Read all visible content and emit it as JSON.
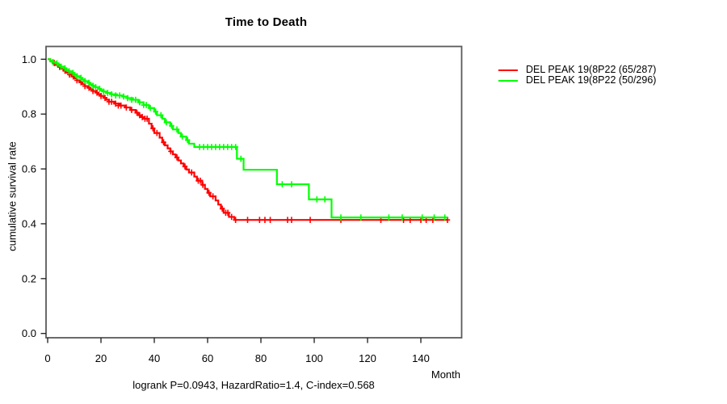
{
  "title": "Time to Death",
  "legend": [
    {
      "label": "DEL PEAK 19(8P22 (65/287)",
      "color": "#ff0000"
    },
    {
      "label": "DEL PEAK 19(8P22 (50/296)",
      "color": "#00ff00"
    }
  ],
  "chart_data": {
    "type": "line",
    "subtype": "kaplan-meier-step",
    "title": "Time to Death",
    "xlabel": "Month",
    "ylabel": "cumulative survival rate",
    "annotation": "logrank P=0.0943, HazardRatio=1.4, C-index=0.568",
    "xlim": [
      0,
      150
    ],
    "ylim": [
      0.0,
      1.0
    ],
    "x_ticks": [
      0,
      20,
      40,
      60,
      80,
      100,
      120,
      140
    ],
    "y_ticks": [
      0.0,
      0.2,
      0.4,
      0.6,
      0.8,
      1.0
    ],
    "grid": false,
    "legend_position": "outside-top-right",
    "axis_color": "#5a5a5a",
    "series": [
      {
        "name": "DEL PEAK 19(8P22 (65/287)",
        "color": "#ff0000",
        "end_month": 150,
        "steps": [
          [
            0,
            1.0
          ],
          [
            1,
            0.993
          ],
          [
            2,
            0.986
          ],
          [
            3,
            0.979
          ],
          [
            4,
            0.972
          ],
          [
            5,
            0.965
          ],
          [
            6,
            0.958
          ],
          [
            7,
            0.951
          ],
          [
            8,
            0.944
          ],
          [
            9,
            0.937
          ],
          [
            10,
            0.93
          ],
          [
            11,
            0.923
          ],
          [
            12,
            0.916
          ],
          [
            13,
            0.909
          ],
          [
            14,
            0.902
          ],
          [
            15,
            0.896
          ],
          [
            16,
            0.89
          ],
          [
            17,
            0.884
          ],
          [
            18,
            0.878
          ],
          [
            19,
            0.872
          ],
          [
            20,
            0.866
          ],
          [
            21,
            0.859
          ],
          [
            22,
            0.852
          ],
          [
            23,
            0.845
          ],
          [
            25,
            0.838
          ],
          [
            27,
            0.831
          ],
          [
            29,
            0.824
          ],
          [
            31,
            0.815
          ],
          [
            33,
            0.805
          ],
          [
            34,
            0.796
          ],
          [
            35,
            0.789
          ],
          [
            36,
            0.783
          ],
          [
            38,
            0.765
          ],
          [
            39,
            0.748
          ],
          [
            40,
            0.731
          ],
          [
            42,
            0.714
          ],
          [
            43,
            0.697
          ],
          [
            44,
            0.686
          ],
          [
            45,
            0.675
          ],
          [
            46,
            0.664
          ],
          [
            47,
            0.653
          ],
          [
            48,
            0.642
          ],
          [
            49,
            0.631
          ],
          [
            50,
            0.62
          ],
          [
            51,
            0.609
          ],
          [
            52,
            0.598
          ],
          [
            53,
            0.587
          ],
          [
            55,
            0.572
          ],
          [
            56,
            0.557
          ],
          [
            58,
            0.542
          ],
          [
            59,
            0.527
          ],
          [
            60,
            0.513
          ],
          [
            61,
            0.5
          ],
          [
            63,
            0.485
          ],
          [
            64,
            0.47
          ],
          [
            65,
            0.455
          ],
          [
            66,
            0.44
          ],
          [
            68,
            0.425
          ],
          [
            70,
            0.414
          ]
        ],
        "censors": [
          [
            2.5,
            0.986
          ],
          [
            4.5,
            0.972
          ],
          [
            6.5,
            0.958
          ],
          [
            8.2,
            0.944
          ],
          [
            9.6,
            0.937
          ],
          [
            11,
            0.923
          ],
          [
            12.5,
            0.916
          ],
          [
            14,
            0.902
          ],
          [
            15.5,
            0.896
          ],
          [
            17,
            0.884
          ],
          [
            18.5,
            0.878
          ],
          [
            20,
            0.866
          ],
          [
            21.5,
            0.859
          ],
          [
            23,
            0.845
          ],
          [
            24,
            0.845
          ],
          [
            25.5,
            0.838
          ],
          [
            26.5,
            0.831
          ],
          [
            27.5,
            0.831
          ],
          [
            29.5,
            0.824
          ],
          [
            31.5,
            0.815
          ],
          [
            33.5,
            0.805
          ],
          [
            34.5,
            0.796
          ],
          [
            35.5,
            0.789
          ],
          [
            36.5,
            0.783
          ],
          [
            37.3,
            0.783
          ],
          [
            39.5,
            0.748
          ],
          [
            41,
            0.731
          ],
          [
            43.5,
            0.697
          ],
          [
            46.2,
            0.664
          ],
          [
            48.5,
            0.642
          ],
          [
            51.5,
            0.609
          ],
          [
            54,
            0.587
          ],
          [
            56.5,
            0.557
          ],
          [
            57.3,
            0.557
          ],
          [
            58.2,
            0.542
          ],
          [
            60.5,
            0.513
          ],
          [
            62,
            0.5
          ],
          [
            65.5,
            0.455
          ],
          [
            66.8,
            0.44
          ],
          [
            67.6,
            0.44
          ],
          [
            69,
            0.425
          ],
          [
            70.5,
            0.414
          ],
          [
            75,
            0.414
          ],
          [
            79.5,
            0.414
          ],
          [
            81.5,
            0.414
          ],
          [
            83.5,
            0.414
          ],
          [
            90,
            0.414
          ],
          [
            91.5,
            0.414
          ],
          [
            98.5,
            0.414
          ],
          [
            110,
            0.414
          ],
          [
            125,
            0.414
          ],
          [
            133.5,
            0.414
          ],
          [
            136,
            0.414
          ],
          [
            140,
            0.414
          ],
          [
            142,
            0.414
          ],
          [
            144.5,
            0.414
          ],
          [
            150,
            0.414
          ]
        ]
      },
      {
        "name": "DEL PEAK 19(8P22 (50/296)",
        "color": "#00ff00",
        "end_month": 150,
        "steps": [
          [
            0,
            1.0
          ],
          [
            1,
            0.995
          ],
          [
            2,
            0.99
          ],
          [
            3,
            0.985
          ],
          [
            4,
            0.979
          ],
          [
            5,
            0.973
          ],
          [
            6,
            0.967
          ],
          [
            7,
            0.961
          ],
          [
            8,
            0.956
          ],
          [
            9,
            0.95
          ],
          [
            10,
            0.944
          ],
          [
            11,
            0.938
          ],
          [
            12,
            0.932
          ],
          [
            13,
            0.926
          ],
          [
            14,
            0.92
          ],
          [
            15,
            0.914
          ],
          [
            16,
            0.908
          ],
          [
            17,
            0.903
          ],
          [
            18,
            0.898
          ],
          [
            19,
            0.892
          ],
          [
            20,
            0.887
          ],
          [
            21,
            0.882
          ],
          [
            22,
            0.877
          ],
          [
            24,
            0.872
          ],
          [
            26,
            0.868
          ],
          [
            28,
            0.864
          ],
          [
            30,
            0.858
          ],
          [
            32,
            0.852
          ],
          [
            34,
            0.843
          ],
          [
            36,
            0.833
          ],
          [
            38,
            0.822
          ],
          [
            40,
            0.809
          ],
          [
            41,
            0.796
          ],
          [
            43,
            0.783
          ],
          [
            44,
            0.77
          ],
          [
            46,
            0.757
          ],
          [
            47,
            0.744
          ],
          [
            49,
            0.731
          ],
          [
            50,
            0.718
          ],
          [
            52,
            0.705
          ],
          [
            53,
            0.692
          ],
          [
            55,
            0.68
          ],
          [
            71,
            0.637
          ],
          [
            73.5,
            0.597
          ],
          [
            86,
            0.544
          ],
          [
            98,
            0.489
          ],
          [
            106.5,
            0.423
          ]
        ],
        "censors": [
          [
            2,
            0.99
          ],
          [
            3.5,
            0.985
          ],
          [
            5,
            0.973
          ],
          [
            6.5,
            0.967
          ],
          [
            8,
            0.956
          ],
          [
            9.5,
            0.95
          ],
          [
            11,
            0.938
          ],
          [
            12.5,
            0.932
          ],
          [
            14,
            0.92
          ],
          [
            15.5,
            0.914
          ],
          [
            17,
            0.903
          ],
          [
            18,
            0.898
          ],
          [
            19.5,
            0.892
          ],
          [
            21,
            0.882
          ],
          [
            22.5,
            0.877
          ],
          [
            24,
            0.872
          ],
          [
            25.5,
            0.868
          ],
          [
            27,
            0.868
          ],
          [
            28.5,
            0.864
          ],
          [
            30,
            0.858
          ],
          [
            31.5,
            0.852
          ],
          [
            33,
            0.852
          ],
          [
            34.5,
            0.843
          ],
          [
            36,
            0.833
          ],
          [
            37,
            0.833
          ],
          [
            38.5,
            0.822
          ],
          [
            40.5,
            0.809
          ],
          [
            42.5,
            0.796
          ],
          [
            44.5,
            0.77
          ],
          [
            46.5,
            0.757
          ],
          [
            48.5,
            0.744
          ],
          [
            50.5,
            0.718
          ],
          [
            52.5,
            0.705
          ],
          [
            57,
            0.68
          ],
          [
            58.5,
            0.68
          ],
          [
            60,
            0.68
          ],
          [
            61.5,
            0.68
          ],
          [
            63,
            0.68
          ],
          [
            64.5,
            0.68
          ],
          [
            66,
            0.68
          ],
          [
            67.5,
            0.68
          ],
          [
            69,
            0.68
          ],
          [
            70.5,
            0.68
          ],
          [
            72.5,
            0.637
          ],
          [
            88,
            0.544
          ],
          [
            91.5,
            0.544
          ],
          [
            101,
            0.489
          ],
          [
            104,
            0.489
          ],
          [
            110,
            0.423
          ],
          [
            117.5,
            0.423
          ],
          [
            128,
            0.423
          ],
          [
            133,
            0.423
          ],
          [
            140.5,
            0.423
          ],
          [
            145,
            0.423
          ],
          [
            149,
            0.423
          ]
        ]
      }
    ]
  }
}
